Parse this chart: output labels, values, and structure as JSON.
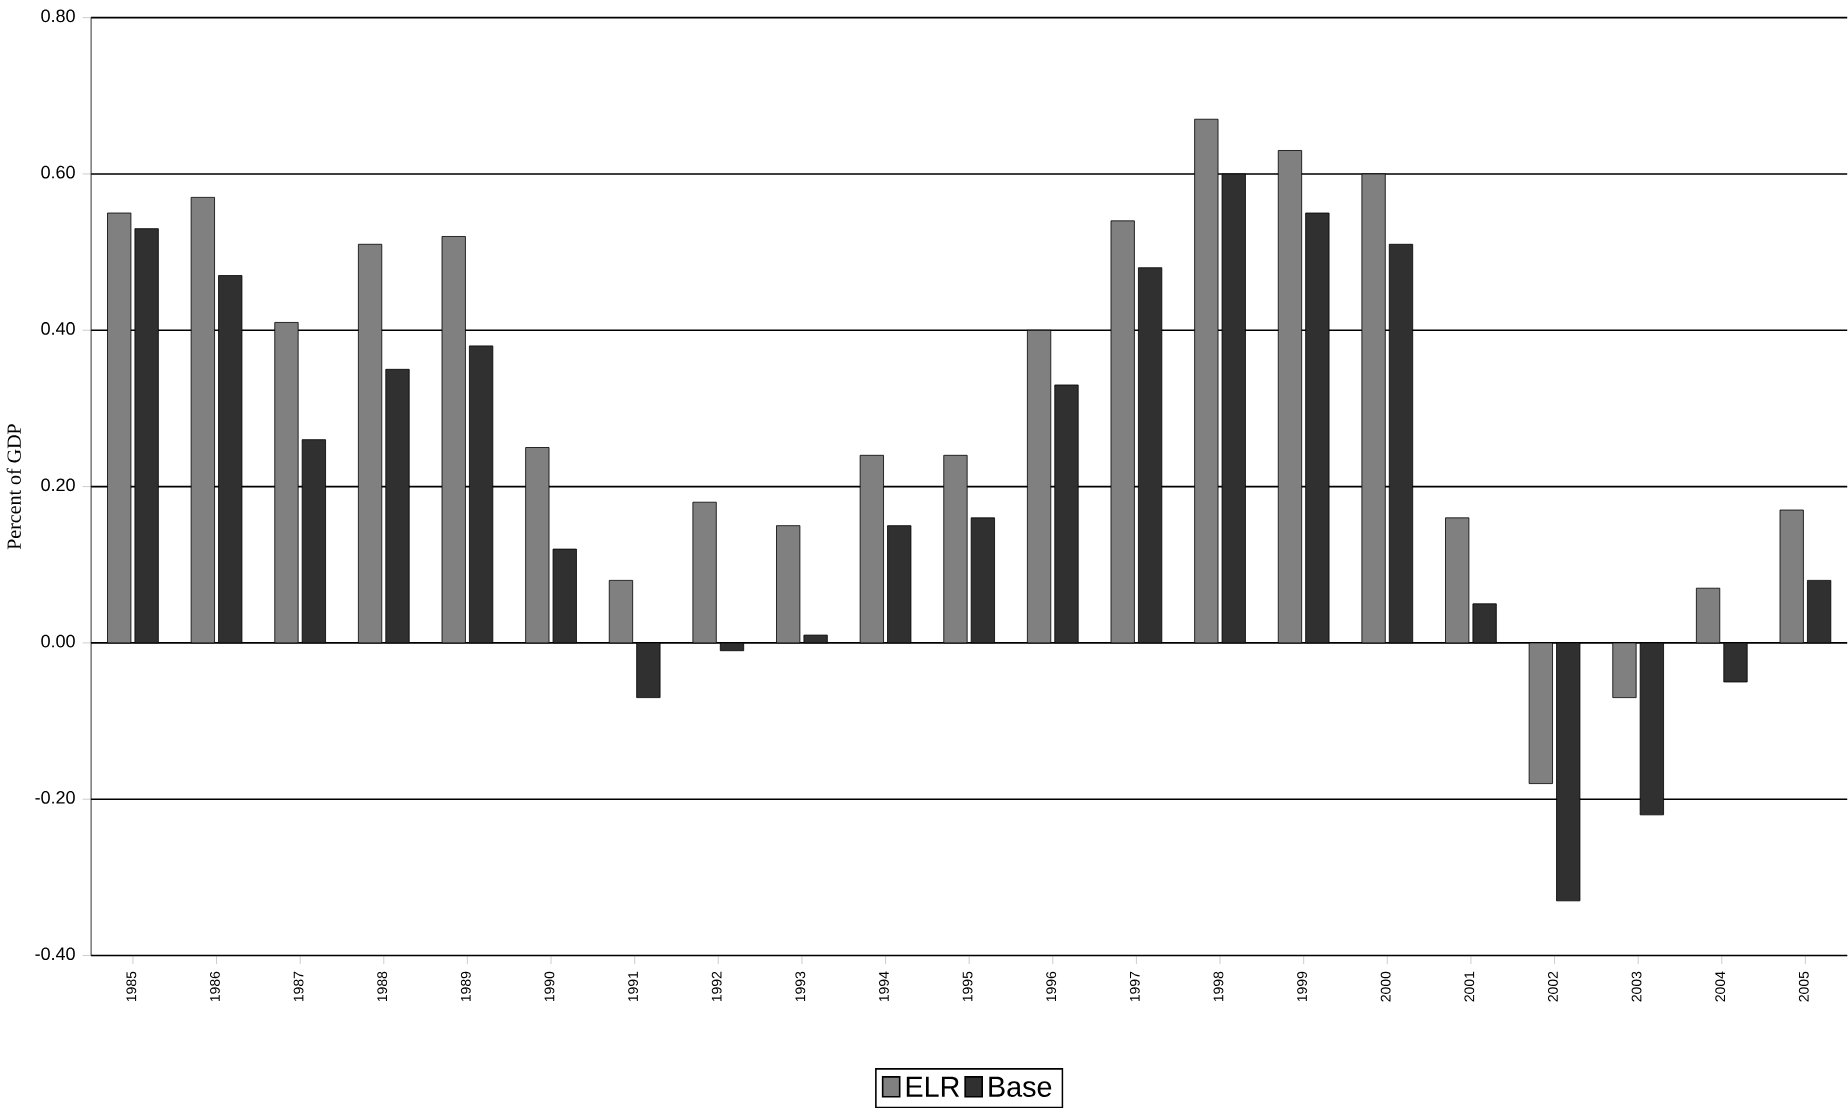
{
  "chart_data": {
    "type": "bar",
    "ylabel": "Percent of GDP",
    "categories": [
      "1985",
      "1986",
      "1987",
      "1988",
      "1989",
      "1990",
      "1991",
      "1992",
      "1993",
      "1994",
      "1995",
      "1996",
      "1997",
      "1998",
      "1999",
      "2000",
      "2001",
      "2002",
      "2003",
      "2004",
      "2005"
    ],
    "series": [
      {
        "name": "ELR",
        "color": "#808080",
        "values": [
          0.55,
          0.57,
          0.41,
          0.51,
          0.52,
          0.25,
          0.08,
          0.18,
          0.15,
          0.24,
          0.24,
          0.4,
          0.54,
          0.67,
          0.63,
          0.6,
          0.16,
          -0.18,
          -0.07,
          0.07,
          0.17
        ]
      },
      {
        "name": "Base",
        "color": "#303030",
        "values": [
          0.53,
          0.47,
          0.26,
          0.35,
          0.38,
          0.12,
          -0.07,
          -0.01,
          0.01,
          0.15,
          0.16,
          0.33,
          0.48,
          0.6,
          0.55,
          0.51,
          0.05,
          -0.33,
          -0.22,
          -0.05,
          0.08
        ]
      }
    ],
    "ylim": [
      -0.4,
      0.8
    ],
    "yticks": [
      {
        "value": -0.4,
        "label": "-0.40"
      },
      {
        "value": -0.2,
        "label": "-0.20"
      },
      {
        "value": 0,
        "label": "0.00"
      },
      {
        "value": 0.2,
        "label": "0.20"
      },
      {
        "value": 0.4,
        "label": "0.40"
      },
      {
        "value": 0.6,
        "label": "0.60"
      },
      {
        "value": 0.8,
        "label": "0.80"
      }
    ],
    "grid": "y",
    "legend": "bottom"
  }
}
